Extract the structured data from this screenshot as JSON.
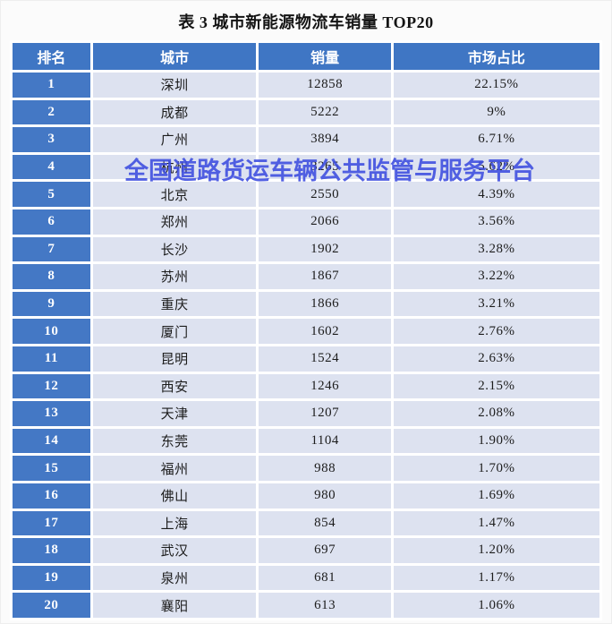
{
  "title": "表 3 城市新能源物流车销量 TOP20",
  "watermark": {
    "text": "全国道路货运车辆公共监管与服务平台",
    "color": "#3c4ce0"
  },
  "colors": {
    "header_blue": "#3f76c4",
    "rank_blue": "#4478c5",
    "row_bg": "#dde2f0",
    "page_bg": "#fbfbfb",
    "header_text": "#ffffff",
    "body_text": "#1c1c1c"
  },
  "table": {
    "headers": [
      "排名",
      "城市",
      "销量",
      "市场占比"
    ],
    "rows": [
      {
        "rank": "1",
        "city": "深圳",
        "sales": "12858",
        "share": "22.15%"
      },
      {
        "rank": "2",
        "city": "成都",
        "sales": "5222",
        "share": "9%"
      },
      {
        "rank": "3",
        "city": "广州",
        "sales": "3894",
        "share": "6.71%"
      },
      {
        "rank": "4",
        "city": "杭州",
        "sales": "3265",
        "share": "5.62%"
      },
      {
        "rank": "5",
        "city": "北京",
        "sales": "2550",
        "share": "4.39%"
      },
      {
        "rank": "6",
        "city": "郑州",
        "sales": "2066",
        "share": "3.56%"
      },
      {
        "rank": "7",
        "city": "长沙",
        "sales": "1902",
        "share": "3.28%"
      },
      {
        "rank": "8",
        "city": "苏州",
        "sales": "1867",
        "share": "3.22%"
      },
      {
        "rank": "9",
        "city": "重庆",
        "sales": "1866",
        "share": "3.21%"
      },
      {
        "rank": "10",
        "city": "厦门",
        "sales": "1602",
        "share": "2.76%"
      },
      {
        "rank": "11",
        "city": "昆明",
        "sales": "1524",
        "share": "2.63%"
      },
      {
        "rank": "12",
        "city": "西安",
        "sales": "1246",
        "share": "2.15%"
      },
      {
        "rank": "13",
        "city": "天津",
        "sales": "1207",
        "share": "2.08%"
      },
      {
        "rank": "14",
        "city": "东莞",
        "sales": "1104",
        "share": "1.90%"
      },
      {
        "rank": "15",
        "city": "福州",
        "sales": "988",
        "share": "1.70%"
      },
      {
        "rank": "16",
        "city": "佛山",
        "sales": "980",
        "share": "1.69%"
      },
      {
        "rank": "17",
        "city": "上海",
        "sales": "854",
        "share": "1.47%"
      },
      {
        "rank": "18",
        "city": "武汉",
        "sales": "697",
        "share": "1.20%"
      },
      {
        "rank": "19",
        "city": "泉州",
        "sales": "681",
        "share": "1.17%"
      },
      {
        "rank": "20",
        "city": "襄阳",
        "sales": "613",
        "share": "1.06%"
      }
    ]
  }
}
